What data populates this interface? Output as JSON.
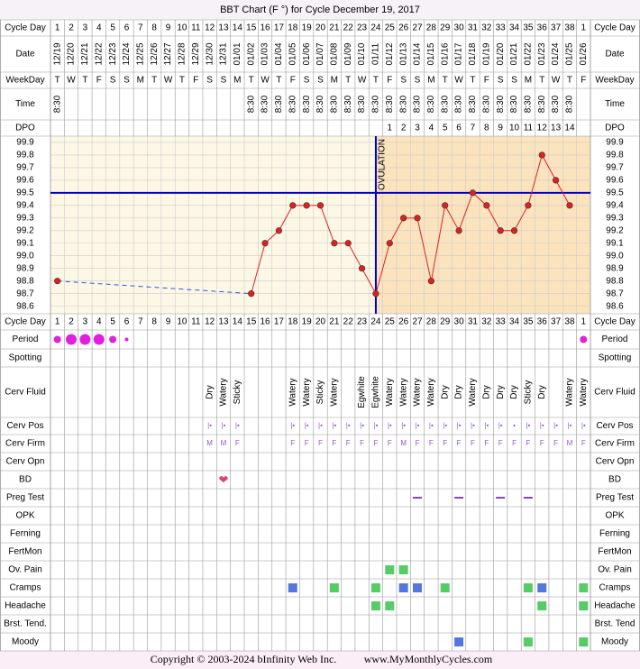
{
  "chart_data": {
    "type": "line",
    "title": "BBT Chart (F °) for Cycle December 19, 2017",
    "labels": [
      "Cycle Day",
      "Date",
      "WeekDay",
      "Time",
      "DPO",
      "Cycle Day",
      "Period",
      "Spotting",
      "Cerv Fluid",
      "Cerv Pos",
      "Cerv Firm",
      "Cerv Opn",
      "BD",
      "Preg Test",
      "OPK",
      "Ferning",
      "FertMon",
      "Ov. Pain",
      "Cramps",
      "Headache",
      "Brst. Tend.",
      "Moody"
    ],
    "labels_right": [
      "Cycle Day",
      "Date",
      "WeekDay",
      "Time",
      "DPO",
      "Cycle Day",
      "Period",
      "Spotting",
      "Cerv Fluid",
      "Cerv Pos",
      "Cerv Firm",
      "Cerv Opn",
      "BD",
      "Preg Test",
      "OPK",
      "Ferning",
      "FertMon",
      "Ov. Pain",
      "Cramps",
      "Headache",
      "Brst. Tend",
      "Moody"
    ],
    "cycle_days": [
      1,
      2,
      3,
      4,
      5,
      6,
      7,
      8,
      9,
      10,
      11,
      12,
      13,
      14,
      15,
      16,
      17,
      18,
      19,
      20,
      21,
      22,
      23,
      24,
      25,
      26,
      27,
      28,
      29,
      30,
      31,
      32,
      33,
      34,
      35,
      36,
      37,
      38,
      1
    ],
    "dates": [
      "12/19",
      "12/20",
      "12/21",
      "12/22",
      "12/23",
      "12/24",
      "12/25",
      "12/26",
      "12/27",
      "12/28",
      "12/29",
      "12/30",
      "12/31",
      "01/01",
      "01/02",
      "01/03",
      "01/04",
      "01/05",
      "01/06",
      "01/07",
      "01/08",
      "01/09",
      "01/10",
      "01/11",
      "01/12",
      "01/13",
      "01/14",
      "01/15",
      "01/16",
      "01/17",
      "01/18",
      "01/19",
      "01/20",
      "01/21",
      "01/22",
      "01/23",
      "01/24",
      "01/25",
      "01/26"
    ],
    "weekdays": [
      "T",
      "W",
      "T",
      "F",
      "S",
      "S",
      "M",
      "T",
      "W",
      "T",
      "F",
      "S",
      "S",
      "M",
      "T",
      "W",
      "T",
      "F",
      "S",
      "S",
      "M",
      "T",
      "W",
      "T",
      "F",
      "S",
      "S",
      "M",
      "T",
      "W",
      "T",
      "F",
      "S",
      "S",
      "M",
      "T",
      "W",
      "T",
      "F"
    ],
    "times": [
      "8:30",
      null,
      null,
      null,
      null,
      null,
      null,
      null,
      null,
      null,
      null,
      null,
      null,
      null,
      "8:30",
      "8:30",
      "8:30",
      "8:30",
      "8:30",
      "8:30",
      "8:30",
      "8:30",
      "8:30",
      "8:30",
      "8:30",
      "8:30",
      "8:30",
      "8:30",
      "8:30",
      "8:30",
      "8:30",
      "8:30",
      "8:30",
      "8:30",
      "8:30",
      "8:30",
      "8:30",
      "8:30",
      null
    ],
    "dpo": [
      null,
      null,
      null,
      null,
      null,
      null,
      null,
      null,
      null,
      null,
      null,
      null,
      null,
      null,
      null,
      null,
      null,
      null,
      null,
      null,
      null,
      null,
      null,
      null,
      1,
      2,
      3,
      4,
      5,
      6,
      7,
      8,
      9,
      10,
      11,
      12,
      13,
      14,
      null
    ],
    "temperatures": [
      98.8,
      null,
      null,
      null,
      null,
      null,
      null,
      null,
      null,
      null,
      null,
      null,
      null,
      null,
      98.7,
      99.1,
      99.2,
      99.4,
      99.4,
      99.4,
      99.1,
      99.1,
      98.9,
      98.7,
      99.1,
      99.3,
      99.3,
      98.8,
      99.4,
      99.2,
      99.5,
      99.4,
      99.2,
      99.2,
      99.4,
      99.8,
      99.6,
      99.4,
      null
    ],
    "color": "#e02020",
    "ylim": [
      98.54,
      99.95
    ],
    "yticks": [
      99.9,
      99.8,
      99.7,
      99.6,
      99.5,
      99.4,
      99.3,
      99.2,
      99.1,
      {
        "value": 99,
        "label": "99.0"
      },
      98.9,
      98.8,
      98.7,
      98.6
    ],
    "grid": true,
    "coverline": 99.5,
    "ovulation_cycle_day": 24,
    "ovulation_label": "OVULATION",
    "period": [
      2,
      3,
      3,
      3,
      2,
      1,
      null,
      null,
      null,
      null,
      null,
      null,
      null,
      null,
      null,
      null,
      null,
      null,
      null,
      null,
      null,
      null,
      null,
      null,
      null,
      null,
      null,
      null,
      null,
      null,
      null,
      null,
      null,
      null,
      null,
      null,
      null,
      null,
      2
    ],
    "cerv_fluid": [
      null,
      null,
      null,
      null,
      null,
      null,
      null,
      null,
      null,
      null,
      null,
      "Dry",
      "Watery",
      "Sticky",
      null,
      null,
      null,
      "Watery",
      "Watery",
      "Sticky",
      "Watery",
      null,
      "Egwhite",
      "Egwhite",
      "Watery",
      "Watery",
      "Watery",
      "Watery",
      "Dry",
      "Dry",
      "Watery",
      "Dry",
      "Dry",
      "Dry",
      "Sticky",
      "Dry",
      null,
      "Watery",
      "Watery"
    ],
    "cerv_pos": [
      null,
      null,
      null,
      null,
      null,
      null,
      null,
      null,
      null,
      null,
      null,
      "|•",
      "|•",
      "|•",
      null,
      null,
      null,
      "|•",
      "|•",
      "|•",
      "|•",
      "|•",
      "|•",
      "|•",
      "|•",
      "|•",
      "|•",
      "|•",
      "|•",
      "|•",
      "|•",
      "|•",
      "|•",
      "•",
      "|•",
      "|•",
      "|•",
      "|•",
      "|•"
    ],
    "cerv_firm": [
      null,
      null,
      null,
      null,
      null,
      null,
      null,
      null,
      null,
      null,
      null,
      "M",
      "M",
      "F",
      null,
      null,
      null,
      "F",
      "F",
      "F",
      "F",
      "F",
      "F",
      "F",
      "F",
      "M",
      "F",
      "F",
      "F",
      "F",
      "F",
      "F",
      "F",
      "F",
      "F",
      "F",
      "F",
      "M",
      "F"
    ],
    "bd": [
      null,
      null,
      null,
      null,
      null,
      null,
      null,
      null,
      null,
      null,
      null,
      null,
      "❤",
      null,
      null,
      null,
      null,
      null,
      null,
      null,
      null,
      null,
      null,
      null,
      null,
      null,
      null,
      null,
      null,
      null,
      null,
      null,
      null,
      null,
      null,
      null,
      null,
      null,
      null
    ],
    "preg_test": [
      null,
      null,
      null,
      null,
      null,
      null,
      null,
      null,
      null,
      null,
      null,
      null,
      null,
      null,
      null,
      null,
      null,
      null,
      null,
      null,
      null,
      null,
      null,
      null,
      null,
      null,
      "#9040c0",
      null,
      null,
      "#9040c0",
      null,
      null,
      "#9040c0",
      null,
      "#9040c0",
      null,
      null,
      null,
      null
    ],
    "ov_pain": [
      null,
      null,
      null,
      null,
      null,
      null,
      null,
      null,
      null,
      null,
      null,
      null,
      null,
      null,
      null,
      null,
      null,
      null,
      null,
      null,
      null,
      null,
      null,
      null,
      "#55cc66",
      "#55cc66",
      null,
      null,
      null,
      null,
      null,
      null,
      null,
      null,
      null,
      null,
      null,
      null,
      null
    ],
    "cramps": [
      null,
      null,
      null,
      null,
      null,
      null,
      null,
      null,
      null,
      null,
      null,
      null,
      null,
      null,
      null,
      null,
      null,
      "#5577dd",
      null,
      null,
      "#55cc66",
      null,
      null,
      "#55cc66",
      null,
      "#5577dd",
      "#5577dd",
      null,
      "#55cc66",
      null,
      null,
      null,
      null,
      null,
      "#55cc66",
      "#5577dd",
      null,
      null,
      "#55cc66"
    ],
    "headache": [
      null,
      null,
      null,
      null,
      null,
      null,
      null,
      null,
      null,
      null,
      null,
      null,
      null,
      null,
      null,
      null,
      null,
      null,
      null,
      null,
      null,
      null,
      null,
      "#55cc66",
      "#55cc66",
      null,
      null,
      null,
      null,
      null,
      null,
      null,
      null,
      null,
      null,
      "#55cc66",
      null,
      null,
      "#55cc66"
    ],
    "moody": [
      null,
      null,
      null,
      null,
      null,
      null,
      null,
      null,
      null,
      null,
      null,
      null,
      null,
      null,
      null,
      null,
      null,
      null,
      null,
      null,
      null,
      null,
      null,
      null,
      null,
      null,
      null,
      null,
      null,
      "#5577dd",
      null,
      null,
      null,
      null,
      "#55cc66",
      null,
      null,
      null,
      "#55cc66"
    ],
    "copyright": "Copyright © 2003-2024 bInfinity Web Inc.",
    "website": "www.MyMonthlyCycles.com"
  }
}
